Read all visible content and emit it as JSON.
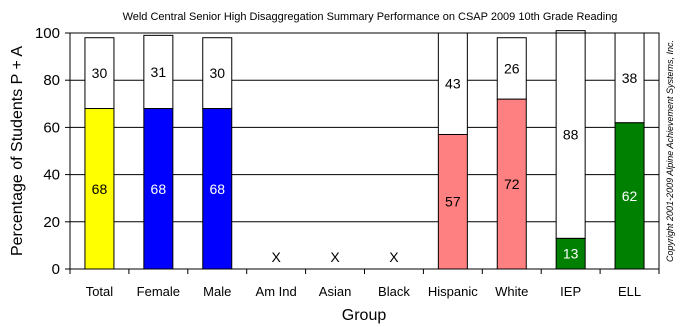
{
  "chart_data": {
    "type": "bar",
    "stacked": true,
    "title": "Weld Central Senior High Disaggregation Summary Performance on CSAP 2009 10th Grade Reading",
    "xlabel": "Group",
    "ylabel": "Percentage of Students P + A",
    "ylim": [
      0,
      100
    ],
    "yticks": [
      0,
      20,
      40,
      60,
      80,
      100
    ],
    "grid": true,
    "categories": [
      "Total",
      "Female",
      "Male",
      "Am Ind",
      "Asian",
      "Black",
      "Hispanic",
      "White",
      "IEP",
      "ELL"
    ],
    "series": [
      {
        "values": [
          68,
          68,
          68,
          null,
          null,
          null,
          57,
          72,
          13,
          62
        ],
        "labels": [
          "68",
          "68",
          "68",
          "X",
          "X",
          "X",
          "57",
          "72",
          "13",
          "62"
        ],
        "colors": [
          "#ffff00",
          "#0000ff",
          "#0000ff",
          "#ffffff",
          "#ffffff",
          "#ffffff",
          "#ff8080",
          "#ff8080",
          "#008000",
          "#008000"
        ],
        "label_colors": [
          "#000000",
          "#ffffff",
          "#ffffff",
          "#000000",
          "#000000",
          "#000000",
          "#000000",
          "#000000",
          "#ffffff",
          "#ffffff"
        ]
      },
      {
        "values": [
          30,
          31,
          30,
          null,
          null,
          null,
          43,
          26,
          88,
          38
        ],
        "labels": [
          "30",
          "31",
          "30",
          "",
          "",
          "",
          "43",
          "26",
          "88",
          "38"
        ],
        "color": "#ffffff",
        "label_color": "#000000"
      }
    ],
    "copyright": "Copyright 2001-2009 Alpine Achievement Systems, Inc."
  }
}
